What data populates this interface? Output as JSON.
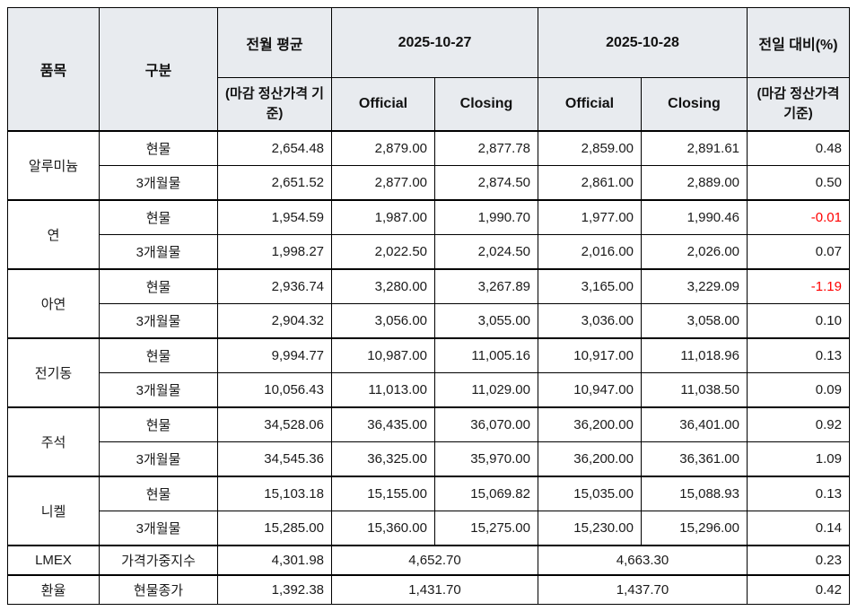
{
  "table": {
    "headers": {
      "item": "품목",
      "category": "구분",
      "prev_avg_title": "전월 평균",
      "prev_avg_sub": "(마감 정산가격 기준)",
      "date1": "2025-10-27",
      "date2": "2025-10-28",
      "official1": "Official",
      "closing1": "Closing",
      "official2": "Official",
      "closing2": "Closing",
      "dod_title": "전일 대비(%)",
      "dod_sub": "(마감 정산가격 기준)"
    },
    "colors": {
      "header_bg": "#e8ebef",
      "border": "#000000",
      "negative_text": "#ff0000",
      "text": "#1a1a1a"
    },
    "groups": [
      {
        "item": "알루미늄",
        "rows": [
          {
            "category": "현물",
            "prev_avg": "2,654.48",
            "d1_official": "2,879.00",
            "d1_closing": "2,877.78",
            "d2_official": "2,859.00",
            "d2_closing": "2,891.61",
            "dod": "0.48"
          },
          {
            "category": "3개월물",
            "prev_avg": "2,651.52",
            "d1_official": "2,877.00",
            "d1_closing": "2,874.50",
            "d2_official": "2,861.00",
            "d2_closing": "2,889.00",
            "dod": "0.50"
          }
        ]
      },
      {
        "item": "연",
        "rows": [
          {
            "category": "현물",
            "prev_avg": "1,954.59",
            "d1_official": "1,987.00",
            "d1_closing": "1,990.70",
            "d2_official": "1,977.00",
            "d2_closing": "1,990.46",
            "dod": "-0.01"
          },
          {
            "category": "3개월물",
            "prev_avg": "1,998.27",
            "d1_official": "2,022.50",
            "d1_closing": "2,024.50",
            "d2_official": "2,016.00",
            "d2_closing": "2,026.00",
            "dod": "0.07"
          }
        ]
      },
      {
        "item": "아연",
        "rows": [
          {
            "category": "현물",
            "prev_avg": "2,936.74",
            "d1_official": "3,280.00",
            "d1_closing": "3,267.89",
            "d2_official": "3,165.00",
            "d2_closing": "3,229.09",
            "dod": "-1.19"
          },
          {
            "category": "3개월물",
            "prev_avg": "2,904.32",
            "d1_official": "3,056.00",
            "d1_closing": "3,055.00",
            "d2_official": "3,036.00",
            "d2_closing": "3,058.00",
            "dod": "0.10"
          }
        ]
      },
      {
        "item": "전기동",
        "rows": [
          {
            "category": "현물",
            "prev_avg": "9,994.77",
            "d1_official": "10,987.00",
            "d1_closing": "11,005.16",
            "d2_official": "10,917.00",
            "d2_closing": "11,018.96",
            "dod": "0.13"
          },
          {
            "category": "3개월물",
            "prev_avg": "10,056.43",
            "d1_official": "11,013.00",
            "d1_closing": "11,029.00",
            "d2_official": "10,947.00",
            "d2_closing": "11,038.50",
            "dod": "0.09"
          }
        ]
      },
      {
        "item": "주석",
        "rows": [
          {
            "category": "현물",
            "prev_avg": "34,528.06",
            "d1_official": "36,435.00",
            "d1_closing": "36,070.00",
            "d2_official": "36,200.00",
            "d2_closing": "36,401.00",
            "dod": "0.92"
          },
          {
            "category": "3개월물",
            "prev_avg": "34,545.36",
            "d1_official": "36,325.00",
            "d1_closing": "35,970.00",
            "d2_official": "36,200.00",
            "d2_closing": "36,361.00",
            "dod": "1.09"
          }
        ]
      },
      {
        "item": "니켈",
        "rows": [
          {
            "category": "현물",
            "prev_avg": "15,103.18",
            "d1_official": "15,155.00",
            "d1_closing": "15,069.82",
            "d2_official": "15,035.00",
            "d2_closing": "15,088.93",
            "dod": "0.13"
          },
          {
            "category": "3개월물",
            "prev_avg": "15,285.00",
            "d1_official": "15,360.00",
            "d1_closing": "15,275.00",
            "d2_official": "15,230.00",
            "d2_closing": "15,296.00",
            "dod": "0.14"
          }
        ]
      }
    ],
    "summary_rows": [
      {
        "item": "LMEX",
        "category": "가격가중지수",
        "prev_avg": "4,301.98",
        "d1": "4,652.70",
        "d2": "4,663.30",
        "dod": "0.23"
      },
      {
        "item": "환율",
        "category": "현물종가",
        "prev_avg": "1,392.38",
        "d1": "1,431.70",
        "d2": "1,437.70",
        "dod": "0.42"
      }
    ]
  }
}
